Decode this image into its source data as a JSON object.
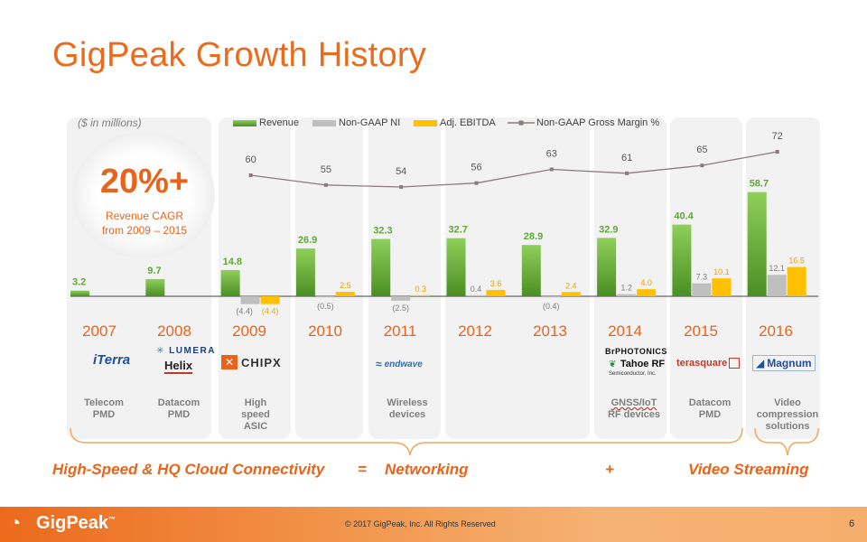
{
  "slide": {
    "title": "GigPeak Growth History",
    "units": "($ in millions)",
    "cagr_value": "20%+",
    "cagr_line1": "Revenue CAGR",
    "cagr_line2": "from 2009 – 2015",
    "page_number": "6",
    "copyright": "© 2017 GigPeak, Inc.  All Rights Reserved",
    "footer_brand": "GigPeak",
    "footer_brand_tm": "™"
  },
  "colors": {
    "accent": "#e8641b",
    "revenue": "#5ea834",
    "ni": "#bfbfbf",
    "ebitda": "#ffc000",
    "margin_line": "#8c7b7b"
  },
  "chart_data": {
    "type": "bar",
    "categories": [
      "2007",
      "2008",
      "2009",
      "2010",
      "2011",
      "2012",
      "2013",
      "2014",
      "2015",
      "2016"
    ],
    "series": [
      {
        "name": "Revenue",
        "values": [
          3.2,
          9.7,
          14.8,
          26.9,
          32.3,
          32.7,
          28.9,
          32.9,
          40.4,
          58.7
        ],
        "labels": [
          "3.2",
          "9.7",
          "14.8",
          "26.9",
          "32.3",
          "32.7",
          "28.9",
          "32.9",
          "40.4",
          "58.7"
        ]
      },
      {
        "name": "Non-GAAP NI",
        "values": [
          null,
          null,
          -4.4,
          -0.5,
          -2.5,
          0.4,
          -0.4,
          1.2,
          7.3,
          12.1
        ],
        "labels": [
          null,
          null,
          "(4.4)",
          "(0.5)",
          "(2.5)",
          "0.4",
          "(0.4)",
          "1.2",
          "7.3",
          "12.1"
        ]
      },
      {
        "name": "Adj. EBITDA",
        "values": [
          null,
          null,
          -4.4,
          2.5,
          0.3,
          3.6,
          2.4,
          4.0,
          10.1,
          16.5
        ],
        "labels": [
          null,
          null,
          "(4.4)",
          "2.5",
          "0.3",
          "3.6",
          "2.4",
          "4.0",
          "10.1",
          "16.5"
        ]
      },
      {
        "name": "Non-GAAP Gross Margin %",
        "type": "line",
        "values": [
          null,
          null,
          60,
          55,
          54,
          56,
          63,
          61,
          65,
          72
        ],
        "labels": [
          null,
          null,
          "60",
          "55",
          "54",
          "56",
          "63",
          "61",
          "65",
          "72"
        ]
      }
    ],
    "title": "GigPeak Growth History",
    "ylabel": "$ in millions",
    "grid": false,
    "legend": "top"
  },
  "segments": [
    {
      "line1": "Telecom",
      "line2": "PMD",
      "line3": ""
    },
    {
      "line1": "Datacom",
      "line2": "PMD",
      "line3": ""
    },
    {
      "line1": "High",
      "line2": "speed",
      "line3": "ASIC"
    },
    {
      "line1": "",
      "line2": "",
      "line3": ""
    },
    {
      "line1": "Wireless",
      "line2": "devices",
      "line3": ""
    },
    {
      "line1": "",
      "line2": "",
      "line3": ""
    },
    {
      "line1": "",
      "line2": "",
      "line3": ""
    },
    {
      "line1": "GNSS/IoT",
      "line2": "RF devices",
      "line3": ""
    },
    {
      "line1": "Datacom",
      "line2": "PMD",
      "line3": ""
    },
    {
      "line1": "Video",
      "line2": "compression",
      "line3": "solutions"
    }
  ],
  "logos": {
    "iterra": "iTerra",
    "lumera": "LUMERA",
    "helix": "Helix",
    "chipx": "CHIPX",
    "endwave": "endwave",
    "brphotonics": "BrPHOTONICS",
    "tahoe": "Tahoe RF",
    "tahoe_sub": "Semiconductor, Inc.",
    "terasquare": "terasquare",
    "magnum": "Magnum"
  },
  "tagline": {
    "part1": "High-Speed & HQ Cloud Connectivity",
    "eq": "=",
    "part2": "Networking",
    "plus": "+",
    "part3": "Video Streaming"
  }
}
